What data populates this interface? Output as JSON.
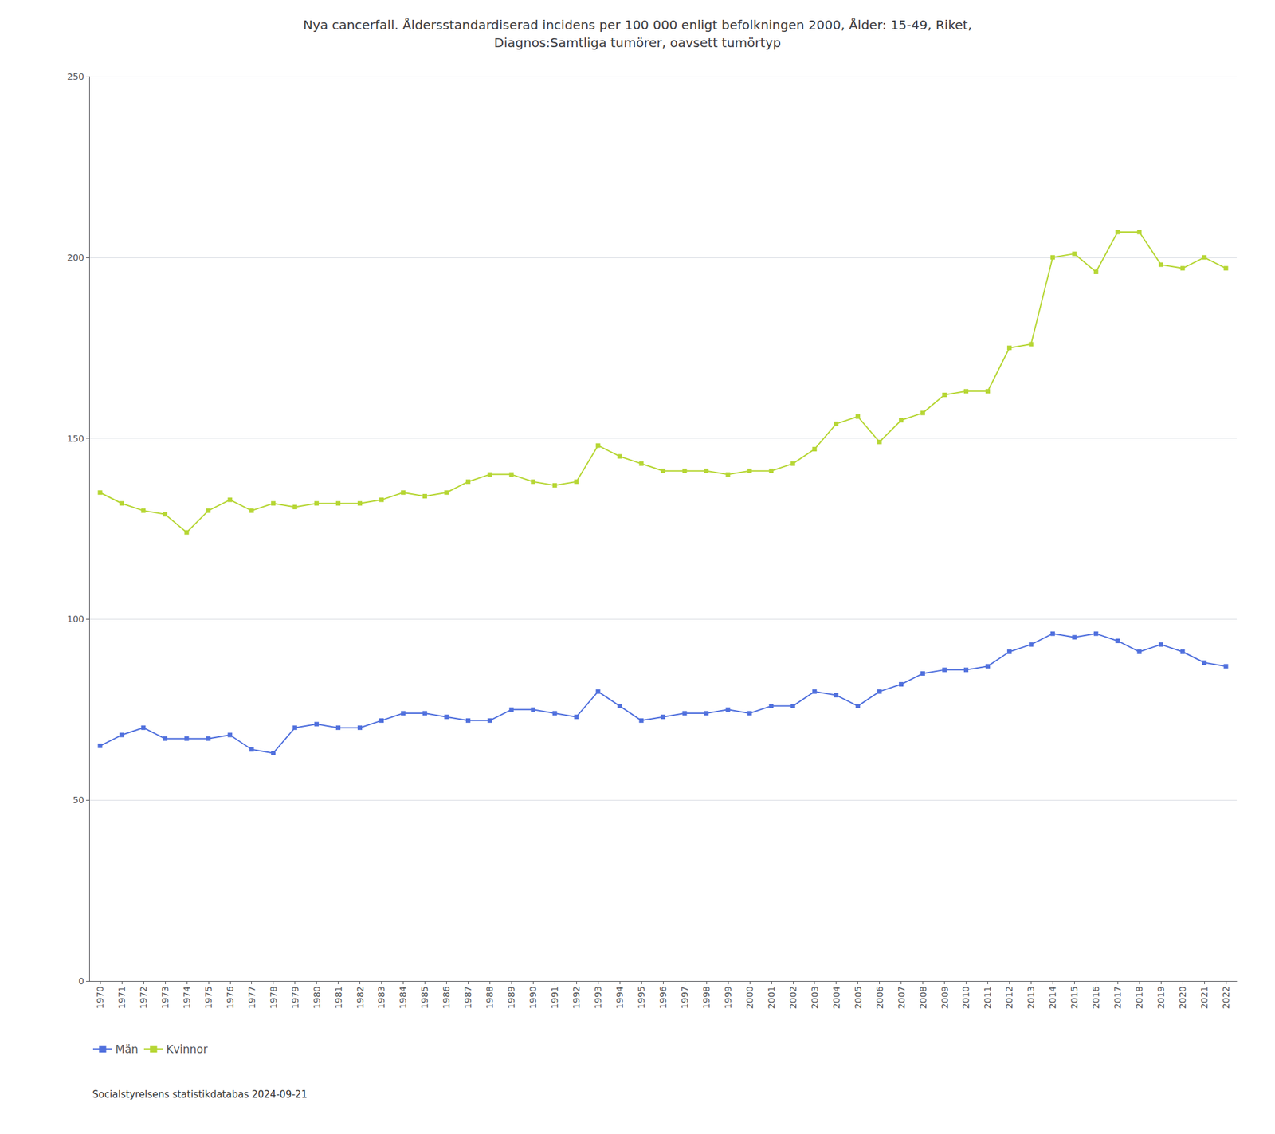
{
  "chart_data": {
    "type": "line",
    "title": "Nya cancerfall. Åldersstandardiserad incidens per 100 000 enligt befolkningen 2000, Ålder: 15-49, Riket,\nDiagnos:Samtliga tumörer, oavsett tumörtyp",
    "source": "Socialstyrelsens statistikdatabas 2024-09-21",
    "x": [
      1970,
      1971,
      1972,
      1973,
      1974,
      1975,
      1976,
      1977,
      1978,
      1979,
      1980,
      1981,
      1982,
      1983,
      1984,
      1985,
      1986,
      1987,
      1988,
      1989,
      1990,
      1991,
      1992,
      1993,
      1994,
      1995,
      1996,
      1997,
      1998,
      1999,
      2000,
      2001,
      2002,
      2003,
      2004,
      2005,
      2006,
      2007,
      2008,
      2009,
      2010,
      2011,
      2012,
      2013,
      2014,
      2015,
      2016,
      2017,
      2018,
      2019,
      2020,
      2021,
      2022
    ],
    "series": [
      {
        "name": "Män",
        "values": [
          65,
          68,
          70,
          67,
          67,
          67,
          68,
          64,
          63,
          70,
          71,
          70,
          70,
          72,
          74,
          74,
          73,
          72,
          72,
          75,
          75,
          74,
          73,
          80,
          76,
          72,
          73,
          74,
          74,
          75,
          74,
          76,
          76,
          80,
          79,
          76,
          80,
          82,
          85,
          86,
          86,
          87,
          91,
          93,
          96,
          95,
          96,
          94,
          91,
          93,
          91,
          88,
          87
        ]
      },
      {
        "name": "Kvinnor",
        "values": [
          135,
          132,
          130,
          129,
          124,
          130,
          133,
          130,
          132,
          131,
          132,
          132,
          132,
          133,
          135,
          134,
          135,
          138,
          140,
          140,
          138,
          137,
          138,
          148,
          145,
          143,
          141,
          141,
          141,
          140,
          141,
          141,
          143,
          147,
          154,
          156,
          149,
          155,
          157,
          162,
          163,
          163,
          175,
          176,
          200,
          201,
          196,
          207,
          207,
          198,
          197,
          200,
          197
        ]
      }
    ],
    "xlim": [
      1969.5,
      2022.5
    ],
    "xticks": [
      1970,
      1971,
      1972,
      1973,
      1974,
      1975,
      1976,
      1977,
      1978,
      1979,
      1980,
      1981,
      1982,
      1983,
      1984,
      1985,
      1986,
      1987,
      1988,
      1989,
      1990,
      1991,
      1992,
      1993,
      1994,
      1995,
      1996,
      1997,
      1998,
      1999,
      2000,
      2001,
      2002,
      2003,
      2004,
      2005,
      2006,
      2007,
      2008,
      2009,
      2010,
      2011,
      2012,
      2013,
      2014,
      2015,
      2016,
      2017,
      2018,
      2019,
      2020,
      2021,
      2022
    ],
    "ylim": [
      0,
      250
    ],
    "yticks": [
      0,
      50,
      100,
      150,
      200,
      250
    ],
    "grid": true,
    "legend": "lower left",
    "marker": "square"
  }
}
